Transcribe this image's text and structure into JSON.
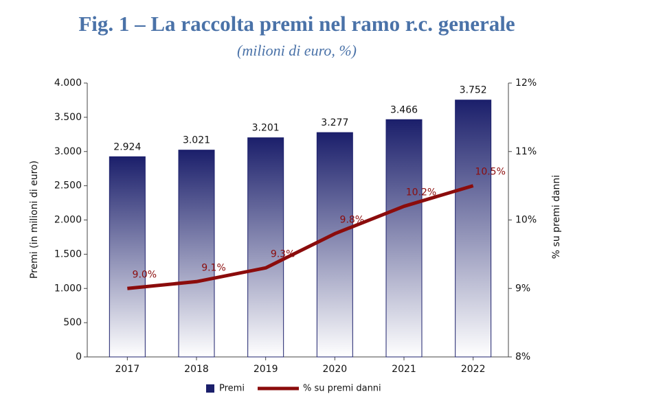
{
  "chart_data": {
    "type": "bar",
    "title": "Fig. 1 – La raccolta premi nel ramo r.c. generale",
    "subtitle": "(milioni di euro, %)",
    "y_label": "Premi (in milioni di euro)",
    "y2_label": "% su premi danni",
    "categories": [
      "2017",
      "2018",
      "2019",
      "2020",
      "2021",
      "2022"
    ],
    "series": [
      {
        "name": "Premi",
        "type": "bar",
        "color": "#1b1f6b",
        "values": [
          2924,
          3021,
          3201,
          3277,
          3466,
          3752
        ],
        "value_labels": [
          "2.924",
          "3.021",
          "3.201",
          "3.277",
          "3.466",
          "3.752"
        ]
      },
      {
        "name": "% su premi danni",
        "type": "line",
        "axis": "y2",
        "color": "#8b0c0c",
        "values": [
          9.0,
          9.1,
          9.3,
          9.8,
          10.2,
          10.5
        ],
        "value_labels": [
          "9.0%",
          "9.1%",
          "9.3%",
          "9.8%",
          "10.2%",
          "10.5%"
        ]
      }
    ],
    "ylim": [
      0,
      4000
    ],
    "yticks": [
      0,
      500,
      {
        "value": 1000,
        "label": "1.000"
      },
      {
        "value": 1500,
        "label": "1.500"
      },
      {
        "value": 2000,
        "label": "2.000"
      },
      {
        "value": 2500,
        "label": "2.500"
      },
      {
        "value": 3000,
        "label": "3.000"
      },
      {
        "value": 3500,
        "label": "3.500"
      },
      {
        "value": 4000,
        "label": "4.000"
      }
    ],
    "y2lim": [
      8,
      12
    ],
    "y2ticks": [
      {
        "value": 8,
        "label": "8%"
      },
      {
        "value": 9,
        "label": "9%"
      },
      {
        "value": 10,
        "label": "10%"
      },
      {
        "value": 11,
        "label": "11%"
      },
      {
        "value": 12,
        "label": "12%"
      }
    ],
    "grid": false,
    "legend": "bottom"
  }
}
